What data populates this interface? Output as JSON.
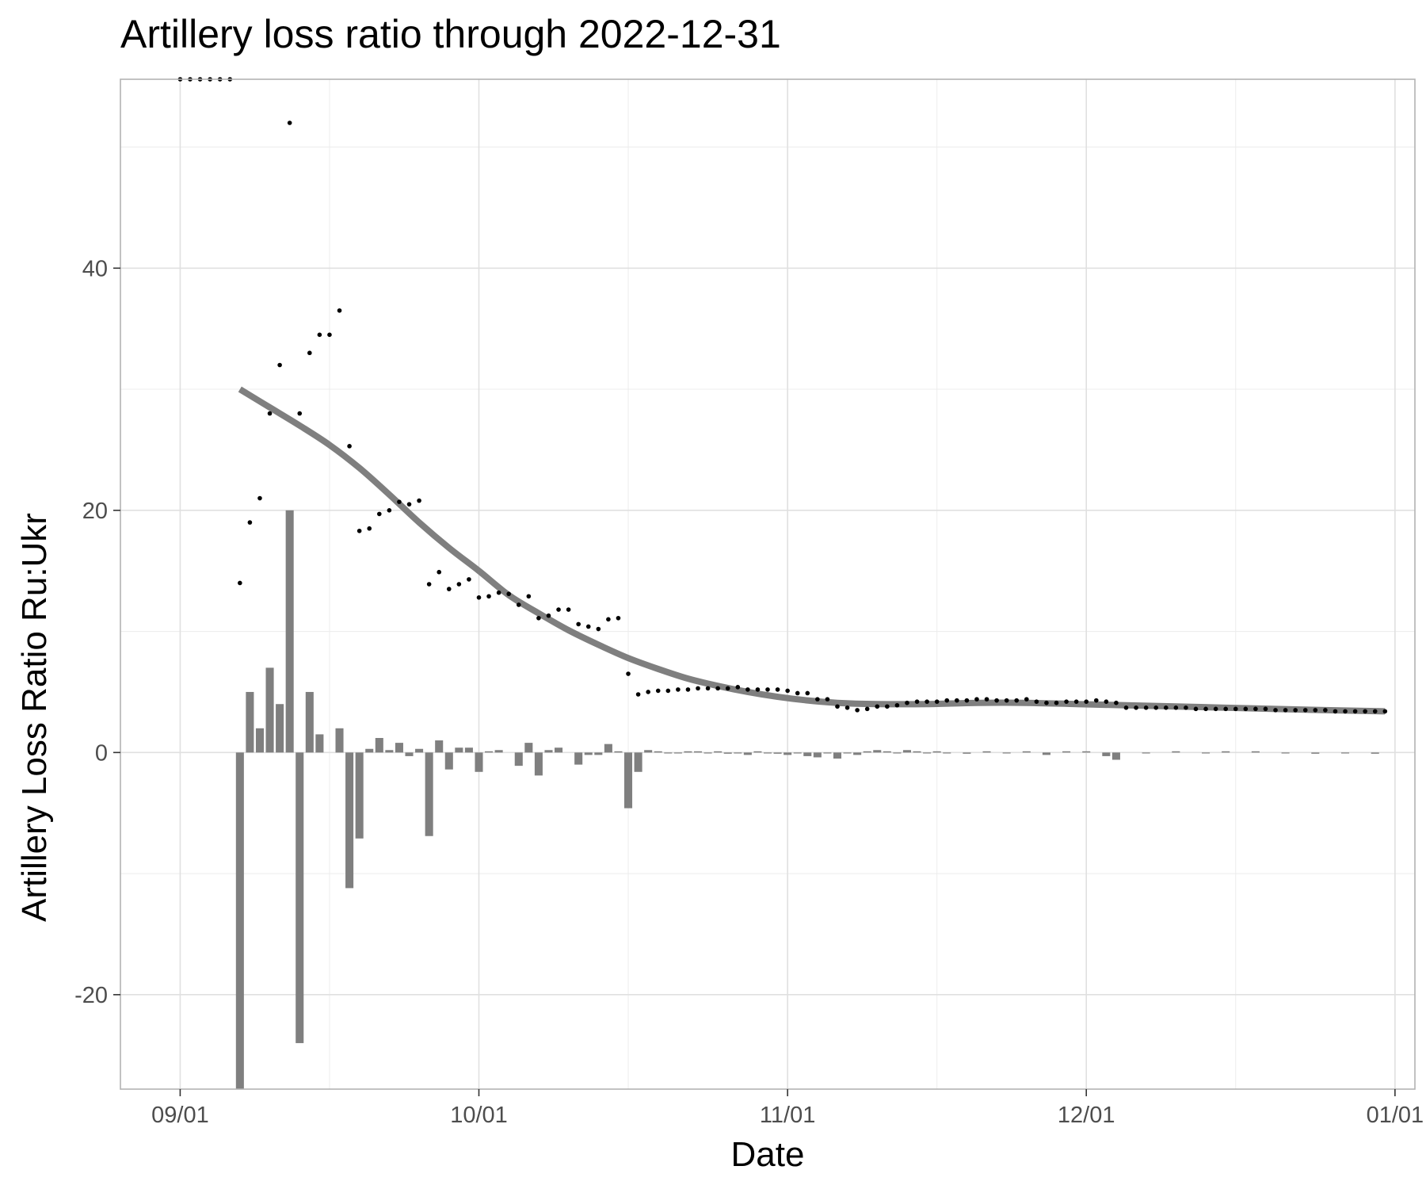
{
  "chart_data": {
    "type": "bar+scatter+line",
    "title": "Artillery loss ratio through 2022-12-31",
    "xlabel": "Date",
    "ylabel": "Artillery Loss Ratio Ru:Ukr",
    "x_range": [
      "2022-08-26",
      "2023-01-03"
    ],
    "y_range": [
      -27.8,
      55.6
    ],
    "x_major_ticks": [
      {
        "date": "2022-09-01",
        "label": "09/01"
      },
      {
        "date": "2022-10-01",
        "label": "10/01"
      },
      {
        "date": "2022-11-01",
        "label": "11/01"
      },
      {
        "date": "2022-12-01",
        "label": "12/01"
      },
      {
        "date": "2023-01-01",
        "label": "01/01"
      }
    ],
    "x_minor_ticks": [
      "2022-09-16",
      "2022-10-16",
      "2022-11-16",
      "2022-12-16"
    ],
    "y_major_ticks": [
      {
        "value": -20,
        "label": "-20"
      },
      {
        "value": 0,
        "label": "0"
      },
      {
        "value": 20,
        "label": "20"
      },
      {
        "value": 40,
        "label": "40"
      }
    ],
    "y_minor_ticks": [
      -10,
      10,
      30,
      50
    ],
    "grid": true,
    "colors": {
      "bars": "#7f7f7f",
      "points": "#000000",
      "trend": "#7f7f7f",
      "grid": "#e0e0e0",
      "frame": "#b3b3b3"
    },
    "series": [
      {
        "kind": "points",
        "x": [
          "2022-09-01",
          "2022-09-02",
          "2022-09-03",
          "2022-09-04",
          "2022-09-05",
          "2022-09-06",
          "2022-09-07",
          "2022-09-08",
          "2022-09-09",
          "2022-09-10",
          "2022-09-11",
          "2022-09-12",
          "2022-09-13",
          "2022-09-14",
          "2022-09-15",
          "2022-09-16",
          "2022-09-17",
          "2022-09-18",
          "2022-09-19",
          "2022-09-20",
          "2022-09-21",
          "2022-09-22",
          "2022-09-23",
          "2022-09-24",
          "2022-09-25",
          "2022-09-26",
          "2022-09-27",
          "2022-09-28",
          "2022-09-29",
          "2022-09-30",
          "2022-10-01",
          "2022-10-02",
          "2022-10-03",
          "2022-10-04",
          "2022-10-05",
          "2022-10-06",
          "2022-10-07",
          "2022-10-08",
          "2022-10-09",
          "2022-10-10",
          "2022-10-11",
          "2022-10-12",
          "2022-10-13",
          "2022-10-14",
          "2022-10-15",
          "2022-10-16",
          "2022-10-17",
          "2022-10-18",
          "2022-10-19",
          "2022-10-20",
          "2022-10-21",
          "2022-10-22",
          "2022-10-23",
          "2022-10-24",
          "2022-10-25",
          "2022-10-26",
          "2022-10-27",
          "2022-10-28",
          "2022-10-29",
          "2022-10-30",
          "2022-10-31",
          "2022-11-01",
          "2022-11-02",
          "2022-11-03",
          "2022-11-04",
          "2022-11-05",
          "2022-11-06",
          "2022-11-07",
          "2022-11-08",
          "2022-11-09",
          "2022-11-10",
          "2022-11-11",
          "2022-11-12",
          "2022-11-13",
          "2022-11-14",
          "2022-11-15",
          "2022-11-16",
          "2022-11-17",
          "2022-11-18",
          "2022-11-19",
          "2022-11-20",
          "2022-11-21",
          "2022-11-22",
          "2022-11-23",
          "2022-11-24",
          "2022-11-25",
          "2022-11-26",
          "2022-11-27",
          "2022-11-28",
          "2022-11-29",
          "2022-11-30",
          "2022-12-01",
          "2022-12-02",
          "2022-12-03",
          "2022-12-04",
          "2022-12-05",
          "2022-12-06",
          "2022-12-07",
          "2022-12-08",
          "2022-12-09",
          "2022-12-10",
          "2022-12-11",
          "2022-12-12",
          "2022-12-13",
          "2022-12-14",
          "2022-12-15",
          "2022-12-16",
          "2022-12-17",
          "2022-12-18",
          "2022-12-19",
          "2022-12-20",
          "2022-12-21",
          "2022-12-22",
          "2022-12-23",
          "2022-12-24",
          "2022-12-25",
          "2022-12-26",
          "2022-12-27",
          "2022-12-28",
          "2022-12-29",
          "2022-12-30",
          "2022-12-31"
        ],
        "y": [
          55.6,
          55.6,
          55.6,
          55.6,
          55.6,
          55.6,
          14,
          19,
          21,
          28,
          32,
          52,
          28,
          33,
          34.5,
          34.5,
          36.5,
          25.3,
          18.3,
          18.5,
          19.7,
          20,
          20.7,
          20.5,
          20.8,
          13.9,
          14.9,
          13.5,
          13.9,
          14.3,
          12.8,
          12.9,
          13.2,
          13.1,
          12.2,
          12.9,
          11.1,
          11.3,
          11.8,
          11.8,
          10.6,
          10.4,
          10.2,
          11,
          11.1,
          6.5,
          4.8,
          5,
          5.1,
          5.1,
          5.2,
          5.2,
          5.3,
          5.3,
          5.3,
          5.3,
          5.4,
          5.2,
          5.2,
          5.2,
          5.2,
          5.1,
          4.9,
          4.9,
          4.4,
          4.4,
          3.8,
          3.7,
          3.5,
          3.6,
          3.8,
          3.8,
          3.9,
          4.1,
          4.2,
          4.2,
          4.2,
          4.3,
          4.3,
          4.3,
          4.4,
          4.4,
          4.3,
          4.3,
          4.3,
          4.4,
          4.2,
          4.1,
          4.1,
          4.2,
          4.2,
          4.2,
          4.3,
          4.2,
          4.1,
          3.7,
          3.7,
          3.7,
          3.7,
          3.7,
          3.7,
          3.7,
          3.6,
          3.6,
          3.6,
          3.6,
          3.6,
          3.6,
          3.6,
          3.6,
          3.5,
          3.5,
          3.5,
          3.5,
          3.5,
          3.5,
          3.4,
          3.4,
          3.4,
          3.4,
          3.4,
          3.4
        ]
      },
      {
        "kind": "bars",
        "x": [
          "2022-09-07",
          "2022-09-08",
          "2022-09-09",
          "2022-09-10",
          "2022-09-11",
          "2022-09-12",
          "2022-09-13",
          "2022-09-14",
          "2022-09-15",
          "2022-09-17",
          "2022-09-18",
          "2022-09-19",
          "2022-09-20",
          "2022-09-21",
          "2022-09-22",
          "2022-09-23",
          "2022-09-24",
          "2022-09-25",
          "2022-09-26",
          "2022-09-27",
          "2022-09-28",
          "2022-09-29",
          "2022-09-30",
          "2022-10-01",
          "2022-10-02",
          "2022-10-03",
          "2022-10-05",
          "2022-10-06",
          "2022-10-07",
          "2022-10-08",
          "2022-10-09",
          "2022-10-11",
          "2022-10-12",
          "2022-10-13",
          "2022-10-14",
          "2022-10-15",
          "2022-10-16",
          "2022-10-17",
          "2022-10-18",
          "2022-10-19",
          "2022-10-20",
          "2022-10-21",
          "2022-10-22",
          "2022-10-23",
          "2022-10-24",
          "2022-10-25",
          "2022-10-26",
          "2022-10-27",
          "2022-10-28",
          "2022-10-29",
          "2022-10-30",
          "2022-10-31",
          "2022-11-01",
          "2022-11-02",
          "2022-11-03",
          "2022-11-04",
          "2022-11-05",
          "2022-11-06",
          "2022-11-07",
          "2022-11-08",
          "2022-11-09",
          "2022-11-10",
          "2022-11-11",
          "2022-11-12",
          "2022-11-13",
          "2022-11-14",
          "2022-11-15",
          "2022-11-16",
          "2022-11-17",
          "2022-11-19",
          "2022-11-21",
          "2022-11-23",
          "2022-11-25",
          "2022-11-27",
          "2022-11-29",
          "2022-12-01",
          "2022-12-03",
          "2022-12-04",
          "2022-12-07",
          "2022-12-10",
          "2022-12-13",
          "2022-12-15",
          "2022-12-18",
          "2022-12-21",
          "2022-12-24",
          "2022-12-27",
          "2022-12-30"
        ],
        "y": [
          -28,
          5,
          2,
          7,
          4,
          20,
          -24,
          5,
          1.5,
          2,
          -11.2,
          -7.1,
          0.3,
          1.2,
          0.2,
          0.8,
          -0.3,
          0.3,
          -6.9,
          1,
          -1.4,
          0.4,
          0.4,
          -1.6,
          0.1,
          0.2,
          -1.1,
          0.8,
          -1.9,
          0.2,
          0.4,
          -1,
          -0.2,
          -0.2,
          0.7,
          0.1,
          -4.6,
          -1.6,
          0.2,
          0.1,
          0,
          0,
          0.1,
          0.1,
          0,
          0.1,
          -0.1,
          0,
          -0.2,
          0.1,
          0,
          -0.1,
          -0.2,
          0,
          -0.3,
          -0.4,
          0,
          -0.5,
          0,
          -0.2,
          0.1,
          0.2,
          0.1,
          0,
          0.2,
          0.1,
          0,
          0.1,
          0,
          -0.1,
          0.1,
          0,
          0.1,
          -0.2,
          0.1,
          0.1,
          -0.3,
          -0.6,
          0,
          0.1,
          0,
          0.1,
          0.1,
          0,
          -0.1,
          0,
          -0.1
        ]
      },
      {
        "kind": "smooth-line",
        "x": [
          "2022-09-07",
          "2022-09-10",
          "2022-09-13",
          "2022-09-16",
          "2022-09-19",
          "2022-09-22",
          "2022-09-25",
          "2022-09-28",
          "2022-10-01",
          "2022-10-04",
          "2022-10-07",
          "2022-10-10",
          "2022-10-13",
          "2022-10-16",
          "2022-10-19",
          "2022-10-22",
          "2022-10-25",
          "2022-10-28",
          "2022-10-31",
          "2022-11-03",
          "2022-11-06",
          "2022-11-10",
          "2022-11-15",
          "2022-11-20",
          "2022-11-25",
          "2022-11-30",
          "2022-12-05",
          "2022-12-10",
          "2022-12-15",
          "2022-12-20",
          "2022-12-25",
          "2022-12-31"
        ],
        "y": [
          30,
          28.5,
          27,
          25.4,
          23.5,
          21.3,
          19,
          16.9,
          15,
          13,
          11.5,
          10.1,
          8.9,
          7.8,
          6.9,
          6.1,
          5.5,
          5,
          4.6,
          4.3,
          4.1,
          4,
          4,
          4.1,
          4.1,
          4,
          3.9,
          3.8,
          3.7,
          3.6,
          3.5,
          3.4
        ]
      }
    ]
  }
}
